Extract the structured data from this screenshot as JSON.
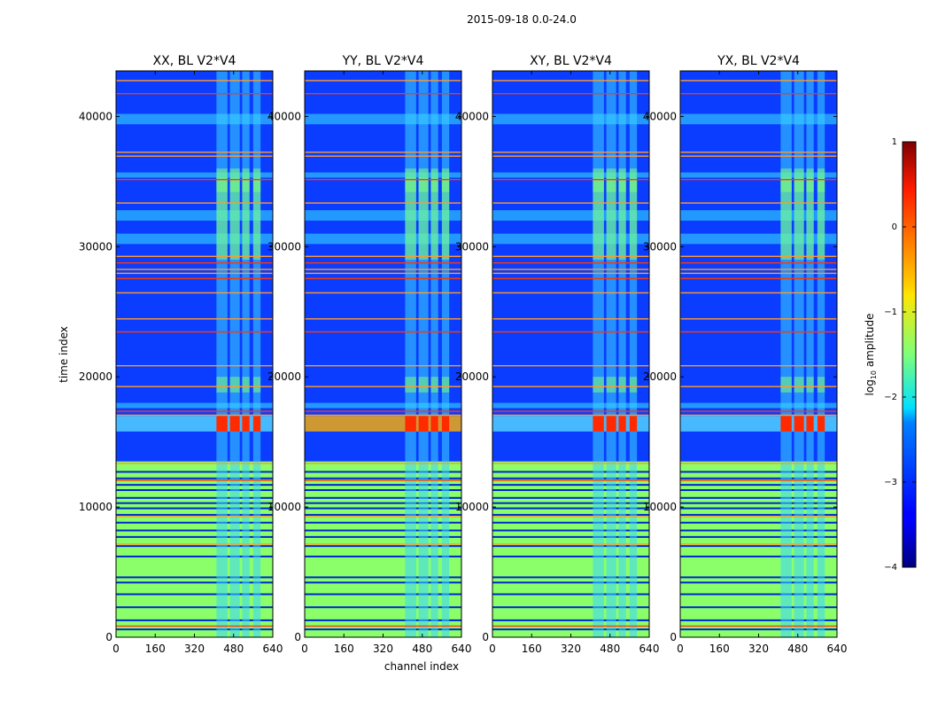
{
  "figure": {
    "suptitle": "2015-09-18 0.0-24.0"
  },
  "chart_data": {
    "type": "heatmap",
    "xlabel": "channel index",
    "ylabel": "time index",
    "xlim": [
      0,
      640
    ],
    "ylim": [
      0,
      43500
    ],
    "xticks": [
      0,
      160,
      320,
      480,
      640
    ],
    "yticks": [
      0,
      10000,
      20000,
      30000,
      40000
    ],
    "panels": [
      {
        "title": "XX, BL V2*V4",
        "pol": "XX"
      },
      {
        "title": "YY, BL V2*V4",
        "pol": "YY"
      },
      {
        "title": "XY, BL V2*V4",
        "pol": "XY"
      },
      {
        "title": "YX, BL V2*V4",
        "pol": "YX"
      }
    ],
    "colorbar": {
      "label_main": "log",
      "label_sub": "10",
      "label_tail": " amplitude",
      "range": [
        -4,
        1
      ],
      "ticks": [
        "1",
        "0",
        "−1",
        "−2",
        "−3",
        "−4"
      ],
      "colormap": "jet"
    },
    "features": {
      "rfi_channel_band": [
        405,
        590
      ],
      "rfi_channel_columns": [
        [
          410,
          455
        ],
        [
          465,
          505
        ],
        [
          515,
          545
        ],
        [
          560,
          590
        ]
      ],
      "strong_rfi_time": [
        15800,
        17000
      ],
      "saturated_time_region": [
        0,
        13500
      ],
      "high_amplitude_rows": [
        900,
        7200,
        9300,
        12100,
        13400,
        17100,
        17400,
        19300,
        20900,
        23500,
        24500,
        26500,
        27600,
        28000,
        28300,
        28800,
        29300,
        33400,
        35200,
        37000,
        37300,
        41800,
        42800
      ]
    }
  }
}
